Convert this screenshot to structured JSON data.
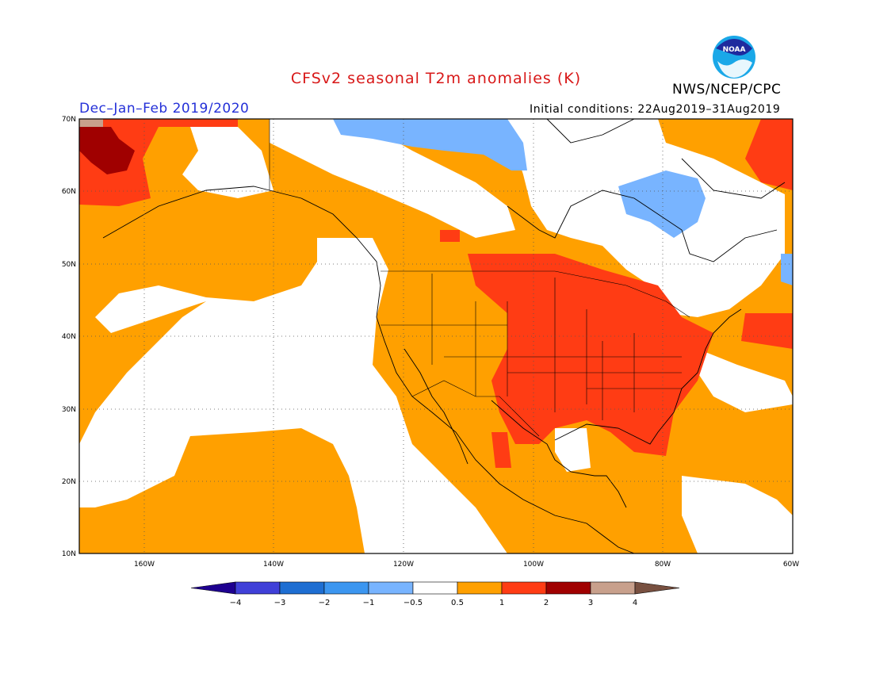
{
  "header": {
    "title": "CFSv2 seasonal T2m anomalies (K)",
    "season": "Dec–Jan–Feb 2019/2020",
    "initial_conditions": "Initial conditions: 22Aug2019–31Aug2019",
    "organization": "NWS/NCEP/CPC",
    "logo_text": "NOAA"
  },
  "map": {
    "lat_labels": [
      "70N",
      "60N",
      "50N",
      "40N",
      "30N",
      "20N",
      "10N"
    ],
    "lon_labels": [
      "160W",
      "140W",
      "120W",
      "100W",
      "80W",
      "60W"
    ],
    "colors": {
      "white": "#ffffff",
      "orange": "#ffa000",
      "red": "#ff3c14",
      "darkred": "#a00000",
      "lightblue": "#78b4ff",
      "tan": "#c8a08c"
    }
  },
  "colorbar": {
    "labels": [
      "−4",
      "−3",
      "−2",
      "−1",
      "−0.5",
      "0.5",
      "1",
      "2",
      "3",
      "4"
    ],
    "colors": [
      "#1e0090",
      "#4040d8",
      "#1e6ed2",
      "#3c96f0",
      "#78b4ff",
      "#ffffff",
      "#ffa000",
      "#ff3c14",
      "#a00000",
      "#c8a08c",
      "#785040"
    ]
  }
}
